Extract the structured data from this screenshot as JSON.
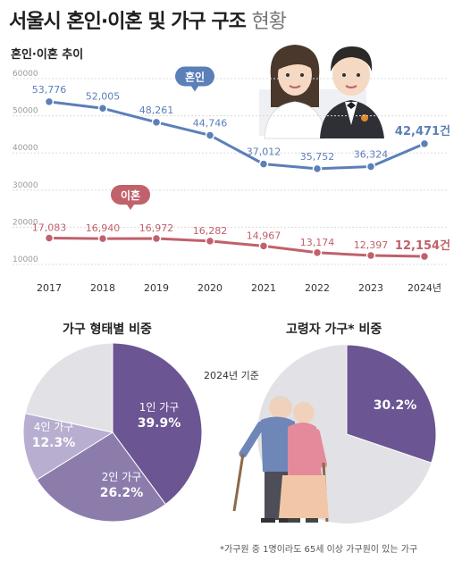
{
  "title_main": "서울시 혼인·이혼 및 가구 구조",
  "title_light": "현황",
  "line_section_title": "혼인·이혼 추이",
  "pie_left_title": "가구 형태별 비중",
  "pie_right_title": "고령자 가구* 비중",
  "baseline_note": "2024년 기준",
  "footnote": "*가구원 중 1명이라도 65세 이상 가구원이 있는 가구",
  "colors": {
    "marriage": "#5b7fb8",
    "divorce": "#c0616b",
    "pie1": "#6b5592",
    "pie2": "#8c7cac",
    "pie3": "#b8aed0",
    "pie_other": "#e2e2e6",
    "elderly": "#6b5592"
  },
  "chart_data": [
    {
      "type": "line",
      "title": "혼인·이혼 추이",
      "categories": [
        "2017",
        "2018",
        "2019",
        "2020",
        "2021",
        "2022",
        "2023",
        "2024년"
      ],
      "ylim": [
        10000,
        60000
      ],
      "y_ticks": [
        "60000",
        "50000",
        "40000",
        "30000",
        "20000",
        "10000"
      ],
      "grid": true,
      "series": [
        {
          "name": "혼인",
          "values": [
            53776,
            52005,
            48261,
            44746,
            37012,
            35752,
            36324,
            42471
          ],
          "labels": [
            "53,776",
            "52,005",
            "48,261",
            "44,746",
            "37,012",
            "35,752",
            "36,324",
            "42,471건"
          ]
        },
        {
          "name": "이혼",
          "values": [
            17083,
            16940,
            16972,
            16282,
            14967,
            13174,
            12397,
            12154
          ],
          "labels": [
            "17,083",
            "16,940",
            "16,972",
            "16,282",
            "14,967",
            "13,174",
            "12,397",
            "12,154건"
          ]
        }
      ]
    },
    {
      "type": "pie",
      "title": "가구 형태별 비중",
      "slices": [
        {
          "name": "1인 가구",
          "value": 39.9,
          "label": "39.9%"
        },
        {
          "name": "2인 가구",
          "value": 26.2,
          "label": "26.2%"
        },
        {
          "name": "4인 가구",
          "value": 12.3,
          "label": "12.3%"
        },
        {
          "name": "",
          "value": 21.6,
          "label": ""
        }
      ]
    },
    {
      "type": "pie",
      "title": "고령자 가구* 비중",
      "slices": [
        {
          "name": "",
          "value": 30.2,
          "label": "30.2%"
        },
        {
          "name": "",
          "value": 69.8,
          "label": ""
        }
      ]
    }
  ]
}
